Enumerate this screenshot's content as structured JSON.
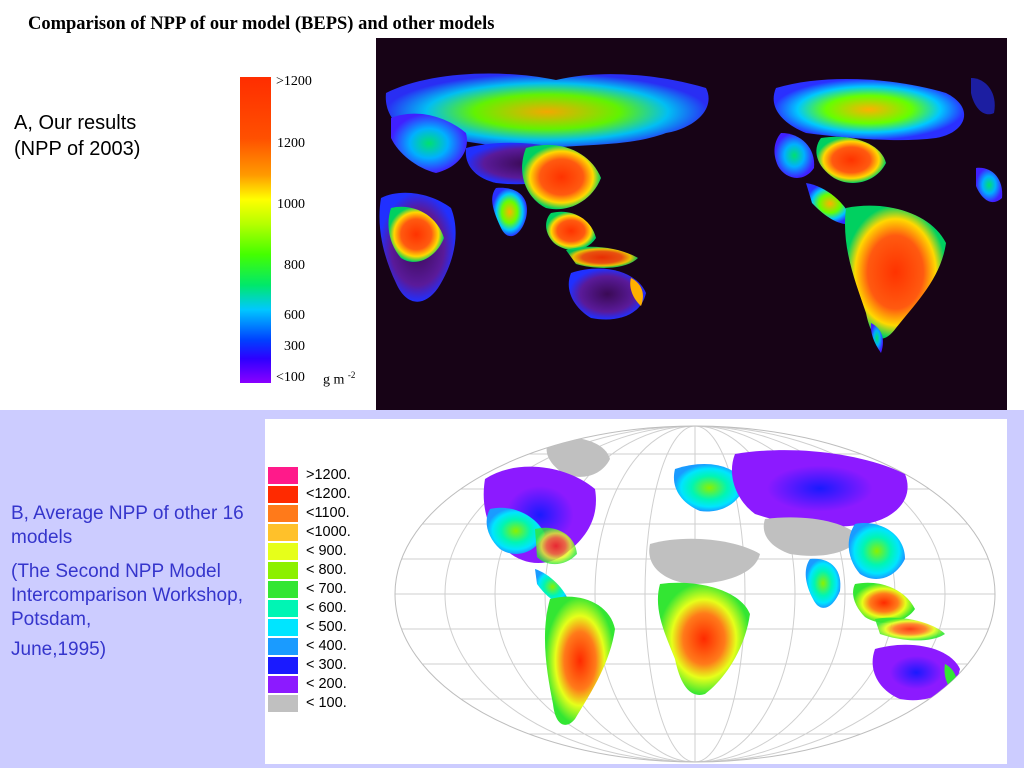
{
  "slide": {
    "title": "Comparison of NPP of our model (BEPS) and other models"
  },
  "panel_a": {
    "label_line1": "A, Our results",
    "label_line2": "(NPP of 2003)",
    "colorbar_ticks": [
      ">1200",
      "1200",
      "1000",
      "800",
      "600",
      "300",
      "<100"
    ],
    "unit_base": "g m",
    "unit_exp": "-2",
    "map_background": "#170316"
  },
  "panel_b": {
    "background": "#ccccff",
    "text_color": "#3535cc",
    "label_line1": "B, Average NPP of other 16 models",
    "label_line2": "(The Second NPP Model Intercomparison Workshop, Potsdam,",
    "label_line3": "June,1995)",
    "legend": [
      {
        "label": ">1200.",
        "color": "#ff1a8a"
      },
      {
        "label": "<1200.",
        "color": "#ff2a00"
      },
      {
        "label": "<1100.",
        "color": "#ff7a1a"
      },
      {
        "label": "<1000.",
        "color": "#ffc12a"
      },
      {
        "label": "< 900.",
        "color": "#e6ff1a"
      },
      {
        "label": "< 800.",
        "color": "#8cf000"
      },
      {
        "label": "< 700.",
        "color": "#33e633"
      },
      {
        "label": "< 600.",
        "color": "#00f5b4"
      },
      {
        "label": "< 500.",
        "color": "#00e5ff"
      },
      {
        "label": "< 400.",
        "color": "#1a9bff"
      },
      {
        "label": "< 300.",
        "color": "#1a1aff"
      },
      {
        "label": "< 200.",
        "color": "#8c1aff"
      },
      {
        "label": "< 100.",
        "color": "#c0c0c0"
      }
    ]
  }
}
